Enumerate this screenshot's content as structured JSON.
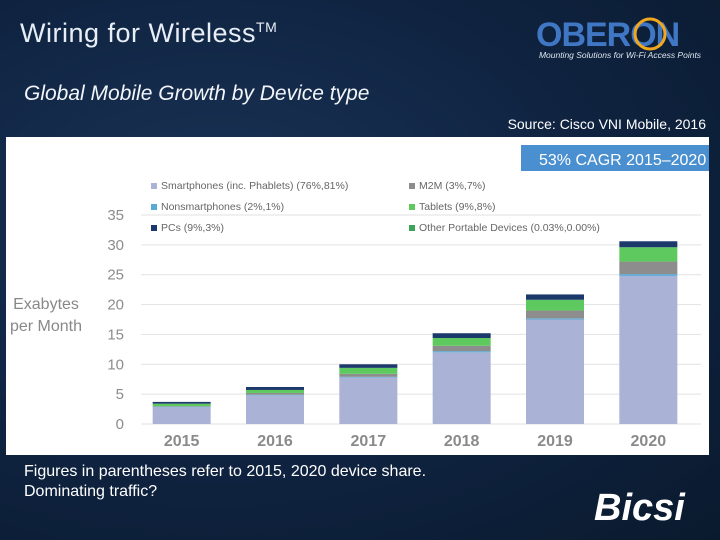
{
  "header": {
    "title": "Wiring for Wireless",
    "title_tm": "TM",
    "subtitle": "Global Mobile Growth by Device type",
    "source": "Source: Cisco VNI Mobile, 2016"
  },
  "logos": {
    "oberon_text": "OBERON",
    "oberon_tagline": "Mounting Solutions for Wi-Fi Access Points",
    "bicsi_text": "Bicsi"
  },
  "footer": {
    "line1": "Figures in parentheses refer to 2015, 2020 device share.",
    "line2": "Dominating traffic?"
  },
  "colors": {
    "smartphones": "#aab3d6",
    "nonsmartphones": "#5aaad6",
    "pcs": "#1b3a6b",
    "m2m": "#8d8d8d",
    "tablets": "#5ec95e",
    "other": "#3da45a",
    "cagr_bg": "#4a90d0"
  },
  "chart_data": {
    "type": "bar",
    "stacked": true,
    "cagr_label": "53% CAGR 2015–2020",
    "ylabel_line1": "Exabytes",
    "ylabel_line2": "per Month",
    "ylim": [
      0,
      35
    ],
    "yticks": [
      0,
      5,
      10,
      15,
      20,
      25,
      30,
      35
    ],
    "categories": [
      "2015",
      "2016",
      "2017",
      "2018",
      "2019",
      "2020"
    ],
    "series": [
      {
        "key": "smartphones",
        "name": "Smartphones (inc. Phablets) (76%,81%)",
        "values": [
          2.8,
          4.8,
          7.8,
          12.0,
          17.5,
          24.8
        ]
      },
      {
        "key": "nonsmartphones",
        "name": "Nonsmartphones (2%,1%)",
        "values": [
          0.1,
          0.1,
          0.1,
          0.2,
          0.2,
          0.3
        ]
      },
      {
        "key": "m2m",
        "name": "M2M (3%,7%)",
        "values": [
          0.1,
          0.3,
          0.5,
          0.9,
          1.3,
          2.1
        ]
      },
      {
        "key": "tablets",
        "name": "Tablets (9%,8%)",
        "values": [
          0.4,
          0.5,
          1.0,
          1.3,
          1.8,
          2.4
        ]
      },
      {
        "key": "other",
        "name": "Other Portable Devices (0.03%,0.00%)",
        "values": [
          0.0,
          0.0,
          0.0,
          0.0,
          0.0,
          0.0
        ]
      },
      {
        "key": "pcs",
        "name": "PCs (9%,3%)",
        "values": [
          0.3,
          0.5,
          0.6,
          0.8,
          0.9,
          1.0
        ]
      }
    ],
    "legend_order": [
      "smartphones",
      "m2m",
      "nonsmartphones",
      "tablets",
      "pcs",
      "other"
    ]
  }
}
